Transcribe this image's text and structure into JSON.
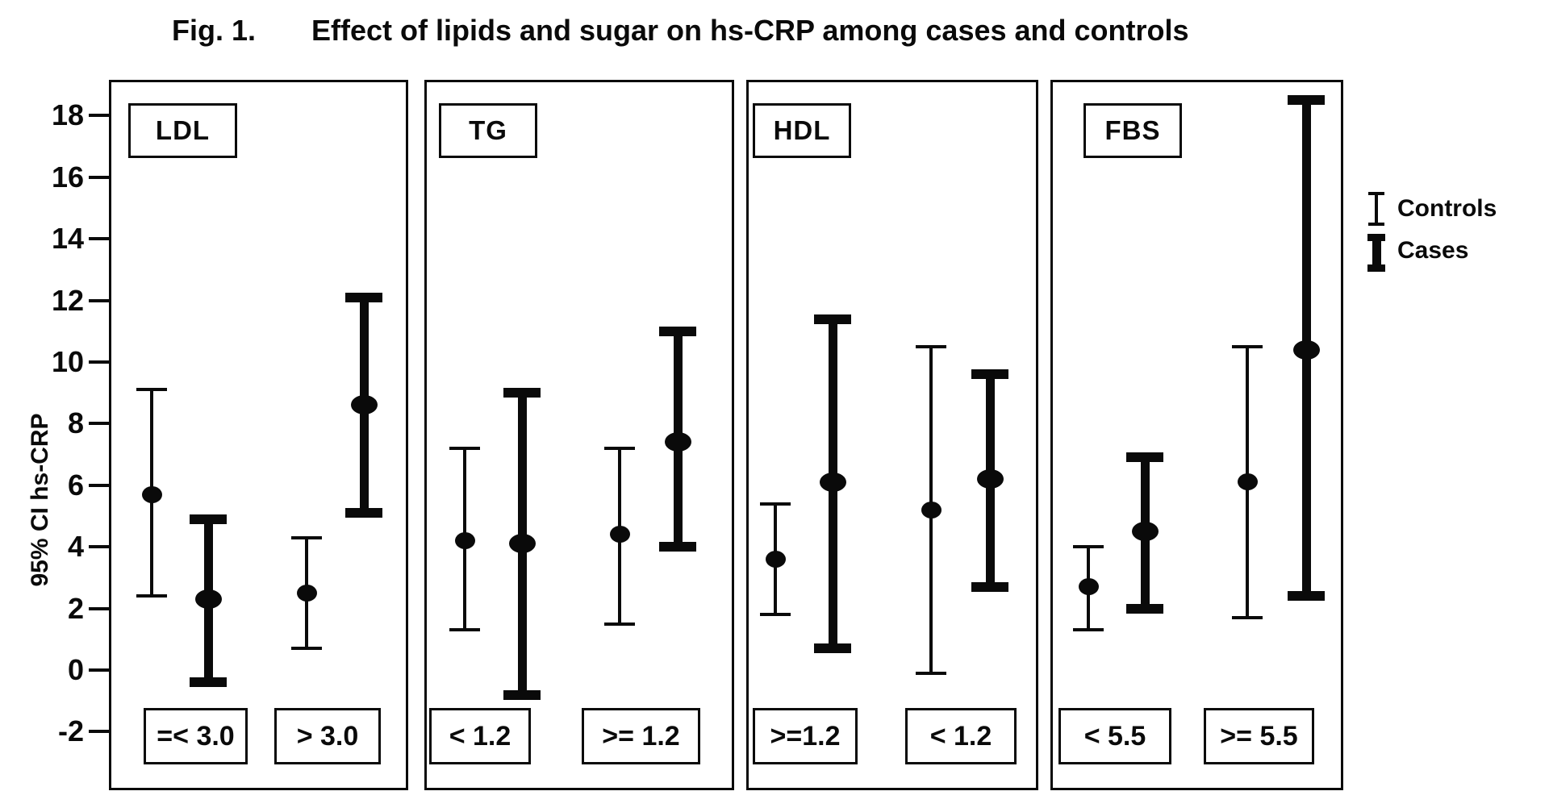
{
  "colors": {
    "foreground": "#0a0a0a",
    "background": "#ffffff"
  },
  "chart_data": {
    "type": "errorbar",
    "figure_label": "Fig. 1.",
    "title": "Effect of lipids and sugar on hs-CRP among cases and controls",
    "ylabel": "95% CI hs-CRP",
    "yticks": [
      18,
      16,
      14,
      12,
      10,
      8,
      6,
      4,
      2,
      0,
      -2
    ],
    "ylim": [
      -3.9,
      19.2
    ],
    "grid": false,
    "legend_position": "right",
    "legend": [
      {
        "name": "Controls",
        "style": "thin"
      },
      {
        "name": "Cases",
        "style": "thick"
      }
    ],
    "panels": [
      {
        "label": "LDL",
        "groups": [
          {
            "label": "=< 3.0",
            "series": [
              {
                "name": "Controls",
                "mean": 5.7,
                "ci": [
                  2.4,
                  9.1
                ]
              },
              {
                "name": "Cases",
                "mean": 2.3,
                "ci": [
                  -0.4,
                  4.9
                ]
              }
            ]
          },
          {
            "label": "> 3.0",
            "series": [
              {
                "name": "Controls",
                "mean": 2.5,
                "ci": [
                  0.7,
                  4.3
                ]
              },
              {
                "name": "Cases",
                "mean": 8.6,
                "ci": [
                  5.1,
                  12.1
                ]
              }
            ]
          }
        ]
      },
      {
        "label": "TG",
        "groups": [
          {
            "label": "< 1.2",
            "series": [
              {
                "name": "Controls",
                "mean": 4.2,
                "ci": [
                  1.3,
                  7.2
                ]
              },
              {
                "name": "Cases",
                "mean": 4.1,
                "ci": [
                  -0.8,
                  9.0
                ]
              }
            ]
          },
          {
            "label": ">= 1.2",
            "series": [
              {
                "name": "Controls",
                "mean": 4.4,
                "ci": [
                  1.5,
                  7.2
                ]
              },
              {
                "name": "Cases",
                "mean": 7.4,
                "ci": [
                  4.0,
                  11.0
                ]
              }
            ]
          }
        ]
      },
      {
        "label": "HDL",
        "groups": [
          {
            "label": ">=1.2",
            "series": [
              {
                "name": "Controls",
                "mean": 3.6,
                "ci": [
                  1.8,
                  5.4
                ]
              },
              {
                "name": "Cases",
                "mean": 6.1,
                "ci": [
                  0.7,
                  11.4
                ]
              }
            ]
          },
          {
            "label": "< 1.2",
            "series": [
              {
                "name": "Controls",
                "mean": 5.2,
                "ci": [
                  -0.1,
                  10.5
                ]
              },
              {
                "name": "Cases",
                "mean": 6.2,
                "ci": [
                  2.7,
                  9.6
                ]
              }
            ]
          }
        ]
      },
      {
        "label": "FBS",
        "groups": [
          {
            "label": "< 5.5",
            "series": [
              {
                "name": "Controls",
                "mean": 2.7,
                "ci": [
                  1.3,
                  4.0
                ]
              },
              {
                "name": "Cases",
                "mean": 4.5,
                "ci": [
                  2.0,
                  6.9
                ]
              }
            ]
          },
          {
            "label": ">= 5.5",
            "series": [
              {
                "name": "Controls",
                "mean": 6.1,
                "ci": [
                  1.7,
                  10.5
                ]
              },
              {
                "name": "Cases",
                "mean": 10.4,
                "ci": [
                  2.4,
                  18.5
                ]
              }
            ]
          }
        ]
      }
    ]
  }
}
